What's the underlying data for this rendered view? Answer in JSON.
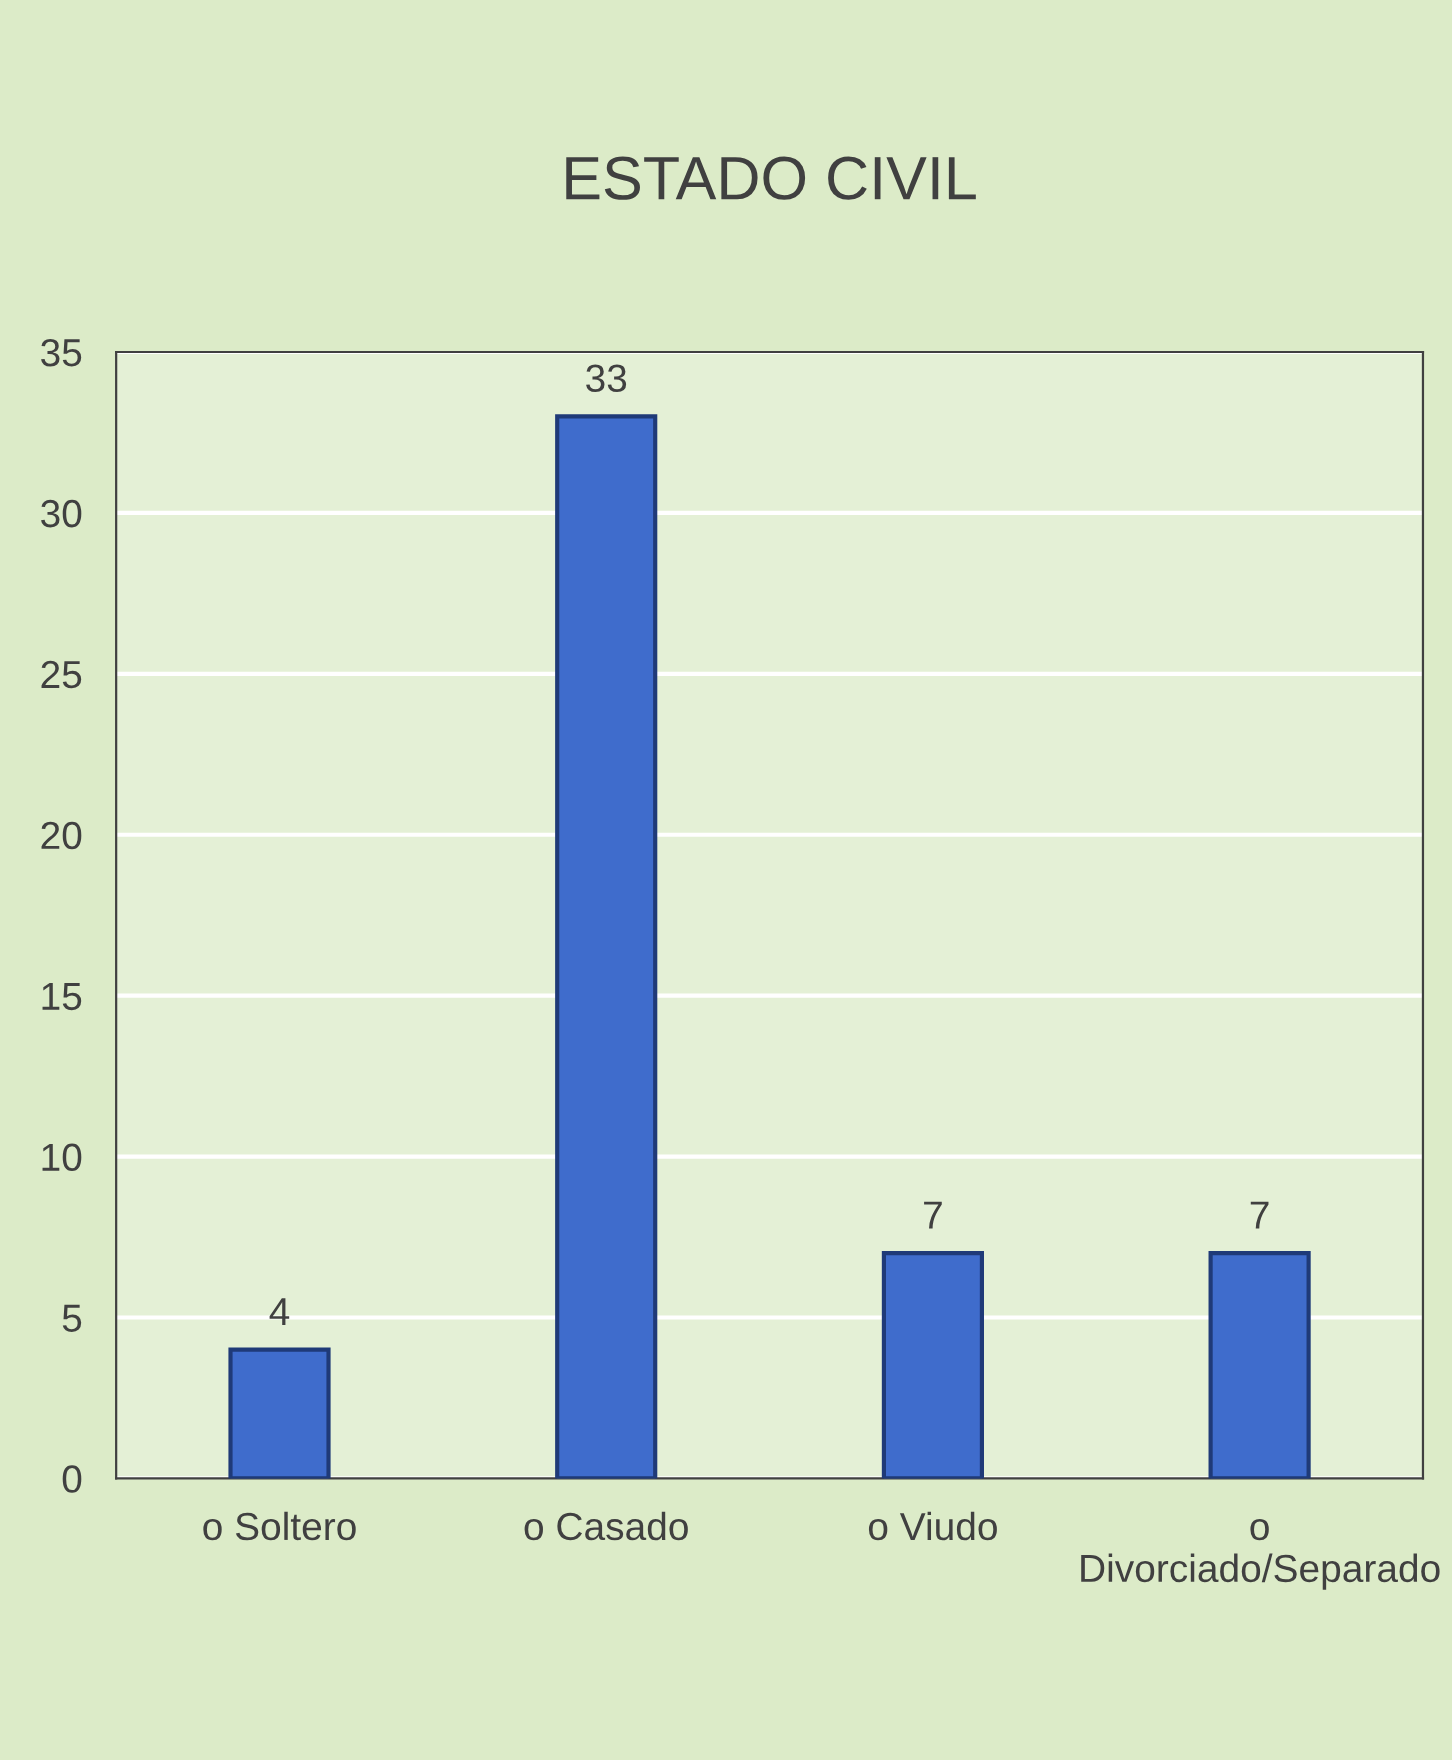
{
  "chart_data": {
    "type": "bar",
    "title": "ESTADO CIVIL",
    "categories": [
      "o Soltero",
      "o Casado",
      "o Viudo",
      "o\nDivorciado/Separado"
    ],
    "values": [
      4,
      33,
      7,
      7
    ],
    "color": "#3f6ccc",
    "ylim": [
      0,
      35
    ],
    "yticks": [
      0,
      5,
      10,
      15,
      20,
      25,
      30,
      35
    ],
    "grid": "y",
    "data_labels": true
  }
}
